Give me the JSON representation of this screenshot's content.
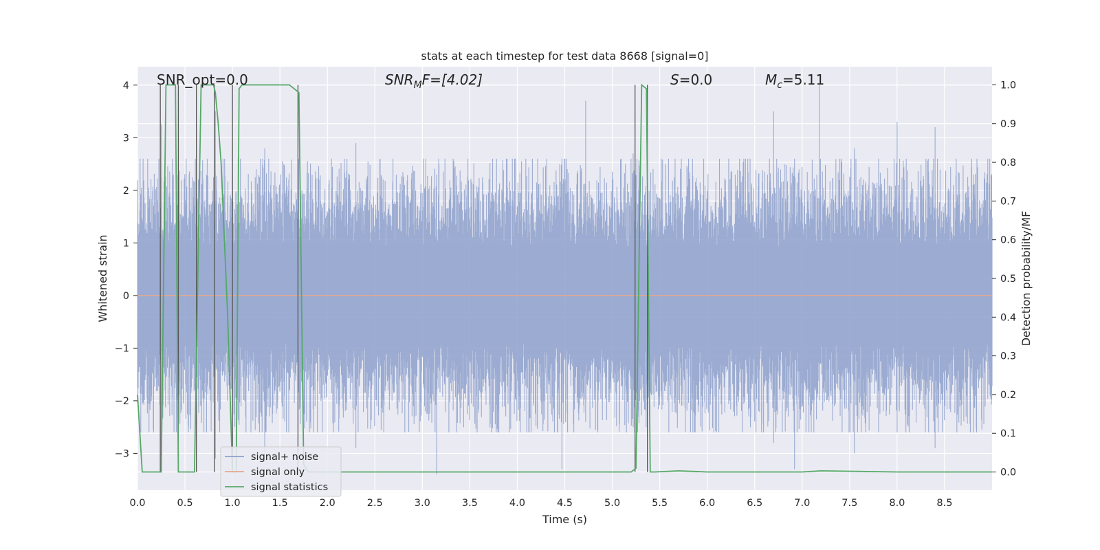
{
  "chart_data": {
    "type": "line",
    "title": "stats at each timestep for test data 8668 [signal=0]",
    "xlabel": "Time (s)",
    "ylabel_left": "Whitened strain",
    "ylabel_right": "Detection probability/MF",
    "xlim": [
      0.0,
      9.0
    ],
    "ylim_left": [
      -3.7,
      4.35
    ],
    "ylim_right": [
      -0.047,
      1.047
    ],
    "x_ticks": [
      "0.0",
      "0.5",
      "1.0",
      "1.5",
      "2.0",
      "2.5",
      "3.0",
      "3.5",
      "4.0",
      "4.5",
      "5.0",
      "5.5",
      "6.0",
      "6.5",
      "7.0",
      "7.5",
      "8.0",
      "8.5"
    ],
    "y_left_ticks": [
      "−3",
      "−2",
      "−1",
      "0",
      "1",
      "2",
      "3",
      "4"
    ],
    "y_right_ticks": [
      "0.0",
      "0.1",
      "0.2",
      "0.3",
      "0.4",
      "0.5",
      "0.6",
      "0.7",
      "0.8",
      "0.9",
      "1.0"
    ],
    "grid": true,
    "legend_position": "lower-left",
    "legend": [
      {
        "label": "signal+ noise",
        "color": "#8da0cb"
      },
      {
        "label": "signal only",
        "color": "#e8a88a"
      },
      {
        "label": "signal statistics",
        "color": "#55a868"
      }
    ],
    "annotations": [
      {
        "prefix": "SNR_opt=0.0",
        "base": "",
        "sub": "",
        "suffix": ""
      },
      {
        "prefix": "",
        "base": "SNR",
        "sub": "M",
        "suffix": "F=[4.02]"
      },
      {
        "prefix": "",
        "base": "S",
        "sub": "",
        "suffix": "=0.0"
      },
      {
        "prefix": "",
        "base": "M",
        "sub": "c",
        "suffix": "=5.11"
      }
    ],
    "series": [
      {
        "name": "signal+ noise",
        "kind": "noise",
        "color": "#8da0cb",
        "x_range": [
          0.0,
          9.0
        ],
        "approx_amplitude": 1.8,
        "peak_spikes": [
          {
            "x": 0.25,
            "y": 3.25,
            "y_min": -3.3
          },
          {
            "x": 0.82,
            "y": 3.5,
            "y_min": -3.1
          },
          {
            "x": 1.0,
            "y": 2.9,
            "y_min": -3.3
          },
          {
            "x": 1.34,
            "y": 2.8,
            "y_min": -3.0
          },
          {
            "x": 2.3,
            "y": 2.9,
            "y_min": -2.9
          },
          {
            "x": 3.15,
            "y": 2.3,
            "y_min": -3.4
          },
          {
            "x": 4.72,
            "y": 3.7,
            "y_min": -2.4
          },
          {
            "x": 4.47,
            "y": 2.6,
            "y_min": -3.3
          },
          {
            "x": 5.22,
            "y": 2.7,
            "y_min": -2.5
          },
          {
            "x": 6.7,
            "y": 3.5,
            "y_min": -2.8
          },
          {
            "x": 6.92,
            "y": 2.6,
            "y_min": -3.3
          },
          {
            "x": 7.18,
            "y": 4.0,
            "y_min": -2.0
          },
          {
            "x": 7.55,
            "y": 2.8,
            "y_min": -3.0
          },
          {
            "x": 8.0,
            "y": 3.3,
            "y_min": -2.6
          },
          {
            "x": 8.4,
            "y": 3.2,
            "y_min": -2.9
          }
        ]
      },
      {
        "name": "signal only",
        "color": "#e8a88a",
        "x": [
          0.0,
          9.0
        ],
        "y": [
          0.0,
          0.0
        ]
      },
      {
        "name": "signal statistics",
        "color": "#55a868",
        "axis": "right",
        "x": [
          0.0,
          0.05,
          0.25,
          0.3,
          0.4,
          0.43,
          0.48,
          0.55,
          0.6,
          0.67,
          0.7,
          0.8,
          0.82,
          0.85,
          0.88,
          0.95,
          1.0,
          1.04,
          1.07,
          1.1,
          1.3,
          1.6,
          1.65,
          1.7,
          1.75,
          1.8,
          4.0,
          5.2,
          5.25,
          5.31,
          5.36,
          5.4,
          5.45,
          5.7,
          6.0,
          7.0,
          7.2,
          8.0,
          9.0
        ],
        "y": [
          0.2,
          0.0,
          0.0,
          1.0,
          1.0,
          0.0,
          0.0,
          0.0,
          0.0,
          1.0,
          1.0,
          1.0,
          0.98,
          0.9,
          0.8,
          0.4,
          0.0,
          0.0,
          0.99,
          1.0,
          1.0,
          1.0,
          0.99,
          0.98,
          0.02,
          0.0,
          0.0,
          0.0,
          0.01,
          1.0,
          0.99,
          0.0,
          0.0,
          0.003,
          0.0,
          0.0,
          0.003,
          0.0,
          0.0
        ]
      }
    ],
    "vertical_lines_x": [
      0.24,
      0.43,
      0.62,
      0.81,
      1.0,
      1.69,
      5.24,
      5.37
    ]
  }
}
